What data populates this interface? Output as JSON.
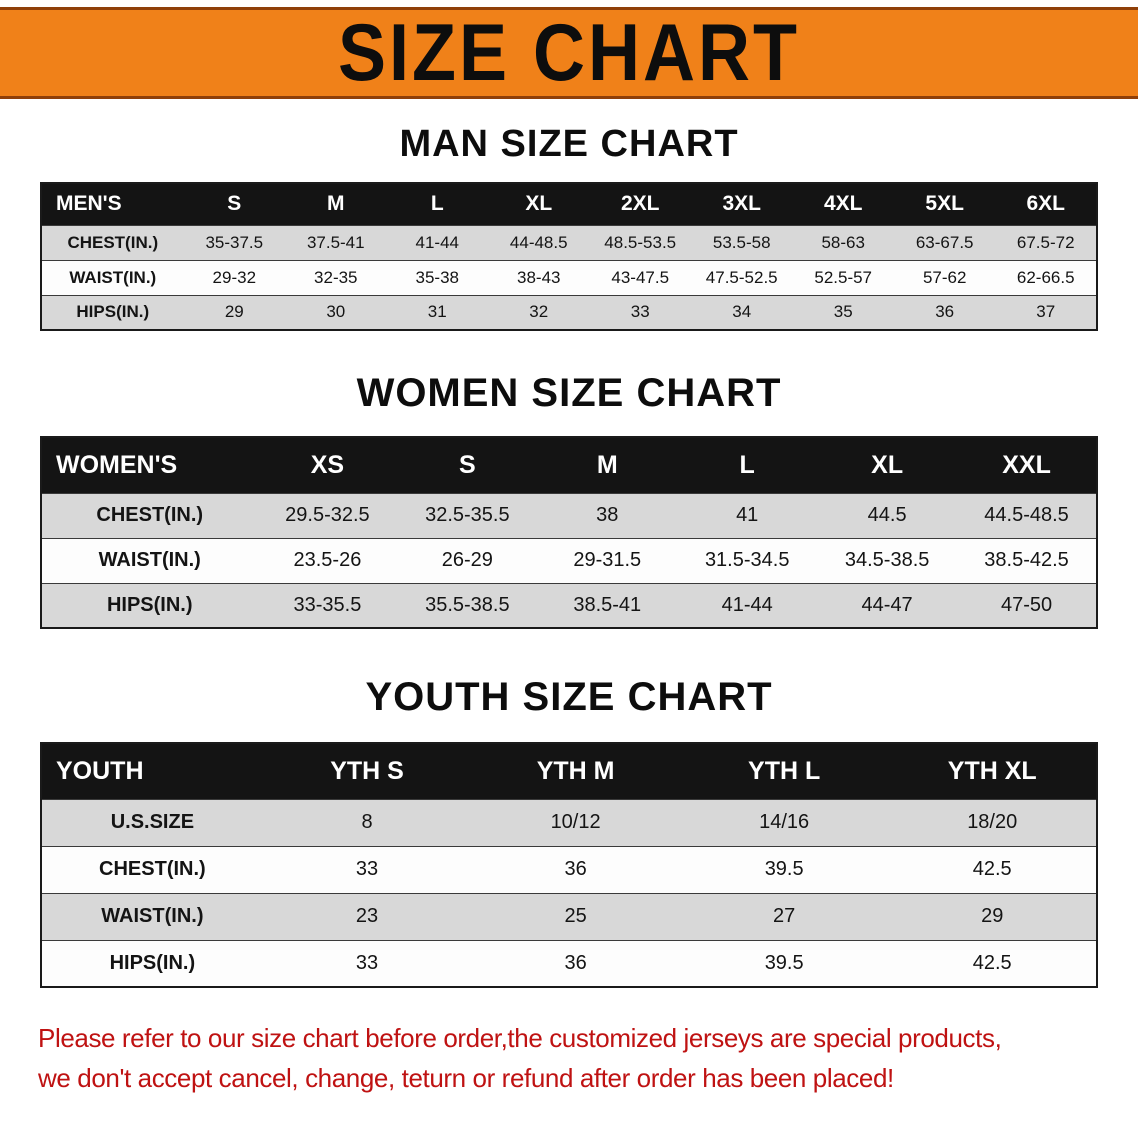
{
  "banner": {
    "title": "SIZE CHART",
    "bg_color": "#f08119",
    "border_color": "#8f3f08"
  },
  "colors": {
    "header_bg": "#141414",
    "header_text": "#ffffff",
    "stripe_gray": "#d8d8d8",
    "notice_red": "#bf1212"
  },
  "sections": [
    {
      "id": "men",
      "heading": "MAN SIZE CHART",
      "table": {
        "corner_label": "MEN'S",
        "columns": [
          "S",
          "M",
          "L",
          "XL",
          "2XL",
          "3XL",
          "4XL",
          "5XL",
          "6XL"
        ],
        "rows": [
          {
            "label": "CHEST(IN.)",
            "values": [
              "35-37.5",
              "37.5-41",
              "41-44",
              "44-48.5",
              "48.5-53.5",
              "53.5-58",
              "58-63",
              "63-67.5",
              "67.5-72"
            ]
          },
          {
            "label": "WAIST(IN.)",
            "values": [
              "29-32",
              "32-35",
              "35-38",
              "38-43",
              "43-47.5",
              "47.5-52.5",
              "52.5-57",
              "57-62",
              "62-66.5"
            ]
          },
          {
            "label": "HIPS(IN.)",
            "values": [
              "29",
              "30",
              "31",
              "32",
              "33",
              "34",
              "35",
              "36",
              "37"
            ]
          }
        ]
      }
    },
    {
      "id": "women",
      "heading": "WOMEN SIZE CHART",
      "table": {
        "corner_label": "WOMEN'S",
        "columns": [
          "XS",
          "S",
          "M",
          "L",
          "XL",
          "XXL"
        ],
        "rows": [
          {
            "label": "CHEST(IN.)",
            "values": [
              "29.5-32.5",
              "32.5-35.5",
              "38",
              "41",
              "44.5",
              "44.5-48.5"
            ]
          },
          {
            "label": "WAIST(IN.)",
            "values": [
              "23.5-26",
              "26-29",
              "29-31.5",
              "31.5-34.5",
              "34.5-38.5",
              "38.5-42.5"
            ]
          },
          {
            "label": "HIPS(IN.)",
            "values": [
              "33-35.5",
              "35.5-38.5",
              "38.5-41",
              "41-44",
              "44-47",
              "47-50"
            ]
          }
        ]
      }
    },
    {
      "id": "youth",
      "heading": "YOUTH SIZE CHART",
      "table": {
        "corner_label": "YOUTH",
        "columns": [
          "YTH S",
          "YTH M",
          "YTH L",
          "YTH XL"
        ],
        "rows": [
          {
            "label": "U.S.SIZE",
            "values": [
              "8",
              "10/12",
              "14/16",
              "18/20"
            ]
          },
          {
            "label": "CHEST(IN.)",
            "values": [
              "33",
              "36",
              "39.5",
              "42.5"
            ]
          },
          {
            "label": "WAIST(IN.)",
            "values": [
              "23",
              "25",
              "27",
              "29"
            ]
          },
          {
            "label": "HIPS(IN.)",
            "values": [
              "33",
              "36",
              "39.5",
              "42.5"
            ]
          }
        ]
      }
    }
  ],
  "footer": {
    "lines": [
      "Please refer to our size chart before order,the customized jerseys are special products,",
      "we don't accept cancel, change, teturn or refund after order has been placed!"
    ]
  }
}
